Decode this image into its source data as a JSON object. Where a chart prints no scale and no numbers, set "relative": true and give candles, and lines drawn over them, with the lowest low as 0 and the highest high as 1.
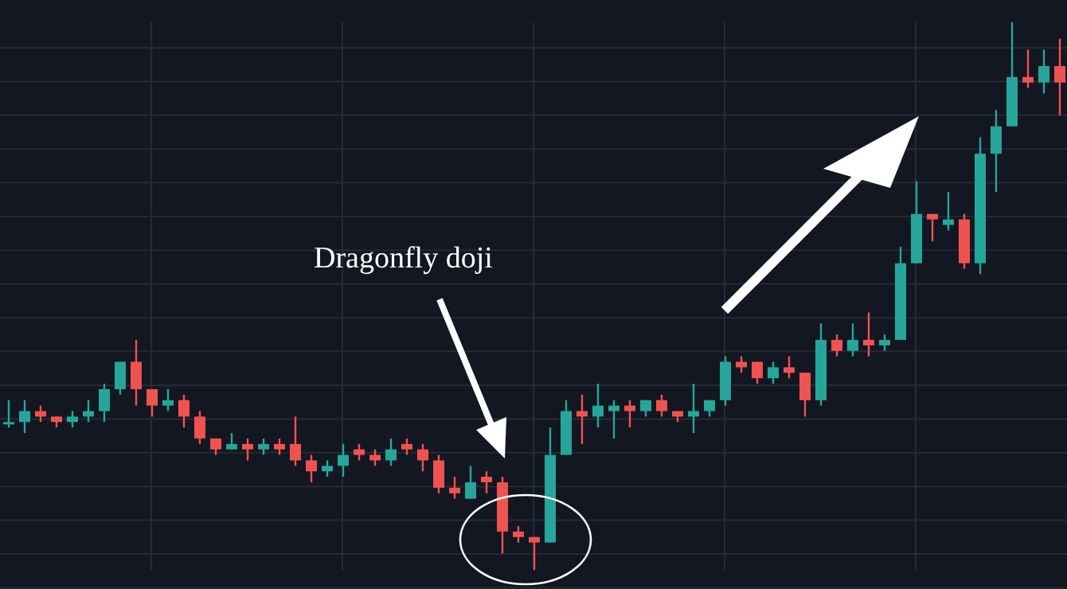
{
  "chart_data": {
    "type": "candlestick",
    "relative": true,
    "grid": true,
    "tick_labels": false,
    "categories": [
      null,
      null,
      null,
      null,
      null,
      null,
      null,
      null,
      null,
      null,
      null,
      null,
      null,
      null,
      null,
      null,
      null,
      null,
      null,
      null,
      null,
      null,
      null,
      null,
      null,
      null,
      null,
      null,
      null,
      null,
      null,
      null,
      null,
      null,
      null,
      null,
      null,
      null,
      null,
      null,
      null,
      null,
      null,
      null,
      null,
      null,
      null,
      null,
      null,
      null,
      null,
      null,
      null,
      null,
      null,
      null,
      null,
      null,
      null,
      null,
      null,
      null,
      null,
      null,
      null,
      null,
      null
    ],
    "ohlc": [
      [
        0.27,
        0.31,
        0.26,
        0.27
      ],
      [
        0.27,
        0.31,
        0.25,
        0.29
      ],
      [
        0.29,
        0.3,
        0.27,
        0.28
      ],
      [
        0.28,
        0.28,
        0.26,
        0.27
      ],
      [
        0.27,
        0.29,
        0.26,
        0.28
      ],
      [
        0.28,
        0.31,
        0.27,
        0.29
      ],
      [
        0.29,
        0.34,
        0.27,
        0.33
      ],
      [
        0.33,
        0.38,
        0.32,
        0.38
      ],
      [
        0.38,
        0.42,
        0.3,
        0.33
      ],
      [
        0.33,
        0.33,
        0.28,
        0.3
      ],
      [
        0.3,
        0.33,
        0.29,
        0.31
      ],
      [
        0.31,
        0.32,
        0.26,
        0.28
      ],
      [
        0.28,
        0.29,
        0.23,
        0.24
      ],
      [
        0.24,
        0.24,
        0.21,
        0.22
      ],
      [
        0.22,
        0.25,
        0.22,
        0.23
      ],
      [
        0.23,
        0.24,
        0.2,
        0.22
      ],
      [
        0.22,
        0.24,
        0.21,
        0.23
      ],
      [
        0.23,
        0.24,
        0.21,
        0.22
      ],
      [
        0.23,
        0.28,
        0.19,
        0.2
      ],
      [
        0.2,
        0.21,
        0.16,
        0.18
      ],
      [
        0.18,
        0.2,
        0.17,
        0.19
      ],
      [
        0.19,
        0.23,
        0.17,
        0.21
      ],
      [
        0.22,
        0.23,
        0.2,
        0.21
      ],
      [
        0.21,
        0.22,
        0.19,
        0.2
      ],
      [
        0.2,
        0.24,
        0.19,
        0.22
      ],
      [
        0.23,
        0.24,
        0.21,
        0.22
      ],
      [
        0.22,
        0.23,
        0.18,
        0.2
      ],
      [
        0.2,
        0.21,
        0.14,
        0.15
      ],
      [
        0.15,
        0.17,
        0.13,
        0.14
      ],
      [
        0.13,
        0.19,
        0.13,
        0.16
      ],
      [
        0.17,
        0.18,
        0.14,
        0.16
      ],
      [
        0.16,
        0.17,
        0.03,
        0.07
      ],
      [
        0.07,
        0.08,
        0.05,
        0.06
      ],
      [
        0.06,
        0.06,
        0,
        0.05
      ],
      [
        0.05,
        0.26,
        0.05,
        0.21
      ],
      [
        0.21,
        0.31,
        0.21,
        0.29
      ],
      [
        0.29,
        0.32,
        0.23,
        0.28
      ],
      [
        0.28,
        0.34,
        0.26,
        0.3
      ],
      [
        0.29,
        0.31,
        0.24,
        0.3
      ],
      [
        0.3,
        0.31,
        0.26,
        0.29
      ],
      [
        0.29,
        0.31,
        0.28,
        0.31
      ],
      [
        0.31,
        0.32,
        0.28,
        0.29
      ],
      [
        0.29,
        0.29,
        0.27,
        0.28
      ],
      [
        0.28,
        0.34,
        0.25,
        0.29
      ],
      [
        0.29,
        0.31,
        0.28,
        0.31
      ],
      [
        0.31,
        0.39,
        0.3,
        0.38
      ],
      [
        0.38,
        0.39,
        0.36,
        0.37
      ],
      [
        0.38,
        0.38,
        0.34,
        0.35
      ],
      [
        0.35,
        0.38,
        0.34,
        0.37
      ],
      [
        0.37,
        0.39,
        0.35,
        0.36
      ],
      [
        0.36,
        0.36,
        0.28,
        0.31
      ],
      [
        0.31,
        0.45,
        0.3,
        0.42
      ],
      [
        0.42,
        0.43,
        0.39,
        0.4
      ],
      [
        0.4,
        0.45,
        0.39,
        0.42
      ],
      [
        0.42,
        0.47,
        0.39,
        0.41
      ],
      [
        0.41,
        0.43,
        0.4,
        0.42
      ],
      [
        0.42,
        0.59,
        0.42,
        0.56
      ],
      [
        0.56,
        0.71,
        0.56,
        0.65
      ],
      [
        0.65,
        0.65,
        0.6,
        0.64
      ],
      [
        0.63,
        0.69,
        0.62,
        0.64
      ],
      [
        0.64,
        0.65,
        0.55,
        0.56
      ],
      [
        0.56,
        0.79,
        0.54,
        0.76
      ],
      [
        0.76,
        0.84,
        0.69,
        0.81
      ],
      [
        0.81,
        1.0,
        0.81,
        0.9
      ],
      [
        0.9,
        0.95,
        0.88,
        0.89
      ],
      [
        0.89,
        0.95,
        0.87,
        0.92
      ],
      [
        0.92,
        0.97,
        0.83,
        0.89
      ]
    ],
    "annotations": [
      "Dragonfly doji"
    ]
  }
}
